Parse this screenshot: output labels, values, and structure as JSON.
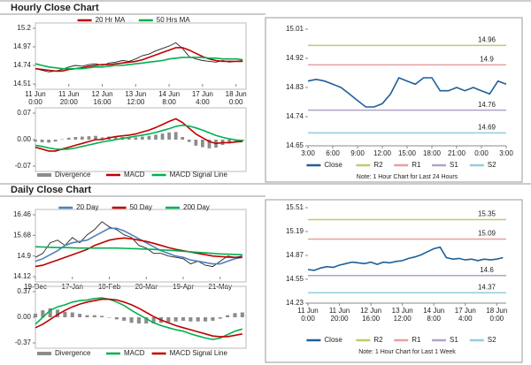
{
  "sections": [
    {
      "title": "Hourly Close Chart"
    },
    {
      "title": "Daily Close Chart"
    }
  ],
  "chart_data": [
    {
      "type": "line",
      "x": [
        0,
        4,
        8,
        12,
        16,
        20,
        24,
        28,
        32,
        36,
        40,
        44,
        48,
        52,
        56,
        60,
        64,
        68,
        72,
        76,
        80,
        84,
        88,
        92,
        96,
        100,
        104,
        108,
        112,
        116,
        120,
        124
      ],
      "xlim": [
        0,
        126
      ],
      "ylim": [
        14.51,
        15.2
      ],
      "yticks": [
        14.51,
        14.74,
        14.97,
        15.2
      ],
      "xticks": [
        {
          "value": 0,
          "label": "11 Jun\n0:00"
        },
        {
          "value": 20,
          "label": "11 Jun\n20:00"
        },
        {
          "value": 40,
          "label": "12 Jun\n16:00"
        },
        {
          "value": 60,
          "label": "13 Jun\n12:00"
        },
        {
          "value": 80,
          "label": "14 Jun\n8:00"
        },
        {
          "value": 100,
          "label": "17 Jun\n4:00"
        },
        {
          "value": 120,
          "label": "18 Jun\n0:00"
        }
      ],
      "series": [
        {
          "color": "#222222",
          "values": [
            14.7,
            14.68,
            14.66,
            14.67,
            14.69,
            14.72,
            14.74,
            14.73,
            14.75,
            14.76,
            14.74,
            14.77,
            14.78,
            14.8,
            14.79,
            14.82,
            14.86,
            14.88,
            14.92,
            14.95,
            14.98,
            15.02,
            14.95,
            14.85,
            14.82,
            14.8,
            14.79,
            14.78,
            14.8,
            14.78,
            14.79,
            14.8
          ]
        },
        {
          "name": "20 Hr MA",
          "color": "#c00000",
          "values": [
            14.7,
            14.69,
            14.68,
            14.67,
            14.67,
            14.69,
            14.7,
            14.71,
            14.73,
            14.74,
            14.75,
            14.75,
            14.76,
            14.77,
            14.78,
            14.79,
            14.81,
            14.84,
            14.87,
            14.9,
            14.93,
            14.96,
            14.96,
            14.93,
            14.89,
            14.85,
            14.82,
            14.8,
            14.79,
            14.79,
            14.79,
            14.79
          ]
        },
        {
          "name": "50 Hrs MA",
          "color": "#00b050",
          "values": [
            14.76,
            14.74,
            14.72,
            14.71,
            14.7,
            14.7,
            14.7,
            14.7,
            14.71,
            14.72,
            14.72,
            14.73,
            14.74,
            14.74,
            14.75,
            14.76,
            14.77,
            14.78,
            14.79,
            14.8,
            14.82,
            14.83,
            14.84,
            14.84,
            14.84,
            14.84,
            14.83,
            14.83,
            14.82,
            14.82,
            14.82,
            14.81
          ]
        }
      ]
    },
    {
      "type": "macd",
      "x": [
        0,
        4,
        8,
        12,
        16,
        20,
        24,
        28,
        32,
        36,
        40,
        44,
        48,
        52,
        56,
        60,
        64,
        68,
        72,
        76,
        80,
        84,
        88,
        92,
        96,
        100,
        104,
        108,
        112,
        116,
        120,
        124
      ],
      "xlim": [
        0,
        126
      ],
      "ylim": [
        -0.07,
        0.07
      ],
      "yticks": [
        -0.07,
        {
          "value": 0,
          "label": "0.00"
        },
        0.07
      ],
      "series": [
        {
          "name": "Divergence",
          "style": "bar",
          "color": "#8c8c8c",
          "values": [
            -0.005,
            -0.007,
            -0.008,
            -0.005,
            0.001,
            0.005,
            0.007,
            0.008,
            0.009,
            0.01,
            0.006,
            0.008,
            0.008,
            0.007,
            0.006,
            0.006,
            0.008,
            0.01,
            0.013,
            0.016,
            0.019,
            0.02,
            0.007,
            -0.006,
            -0.016,
            -0.02,
            -0.023,
            -0.021,
            -0.014,
            -0.01,
            -0.005,
            -0.003
          ]
        },
        {
          "name": "MACD",
          "color": "#c00000",
          "values": [
            -0.02,
            -0.025,
            -0.03,
            -0.03,
            -0.025,
            -0.02,
            -0.015,
            -0.01,
            -0.005,
            0,
            0,
            0.005,
            0.008,
            0.01,
            0.012,
            0.015,
            0.02,
            0.025,
            0.032,
            0.04,
            0.048,
            0.055,
            0.045,
            0.03,
            0.015,
            0.005,
            -0.005,
            -0.01,
            -0.008,
            -0.008,
            -0.006,
            -0.005
          ]
        },
        {
          "name": "MACD Signal Line",
          "color": "#00b050",
          "values": [
            -0.015,
            -0.018,
            -0.022,
            -0.025,
            -0.026,
            -0.025,
            -0.022,
            -0.018,
            -0.014,
            -0.01,
            -0.006,
            -0.003,
            0,
            0.003,
            0.006,
            0.009,
            0.012,
            0.015,
            0.019,
            0.024,
            0.029,
            0.035,
            0.038,
            0.036,
            0.031,
            0.025,
            0.018,
            0.011,
            0.006,
            0.002,
            -0.001,
            -0.002
          ]
        }
      ]
    },
    {
      "type": "line",
      "note": "Note: 1 Hour Chart for Last 24 Hours",
      "x": [
        0,
        1,
        2,
        3,
        4,
        5,
        6,
        7,
        8,
        9,
        10,
        11,
        12,
        13,
        14,
        15,
        16,
        17,
        18,
        19,
        20,
        21,
        22,
        23,
        24
      ],
      "xlim": [
        0,
        24
      ],
      "ylim": [
        14.65,
        15.01
      ],
      "yticks": [
        14.65,
        14.74,
        14.83,
        14.92,
        15.01
      ],
      "xticks": [
        {
          "value": 0,
          "label": "3:00"
        },
        {
          "value": 3,
          "label": "6:00"
        },
        {
          "value": 6,
          "label": "9:00"
        },
        {
          "value": 9,
          "label": "12:00"
        },
        {
          "value": 12,
          "label": "15:00"
        },
        {
          "value": 15,
          "label": "18:00"
        },
        {
          "value": 18,
          "label": "21:00"
        },
        {
          "value": 21,
          "label": "0:00"
        },
        {
          "value": 24,
          "label": "3:00"
        }
      ],
      "series": [
        {
          "name": "Close",
          "color": "#1f5f99",
          "values": [
            14.85,
            14.855,
            14.85,
            14.84,
            14.83,
            14.81,
            14.79,
            14.77,
            14.77,
            14.78,
            14.81,
            14.86,
            14.85,
            14.84,
            14.86,
            14.86,
            14.82,
            14.82,
            14.83,
            14.82,
            14.83,
            14.82,
            14.81,
            14.85,
            14.84
          ]
        }
      ],
      "levels": [
        {
          "name": "R2",
          "value": 14.96,
          "color": "#b5cf6e"
        },
        {
          "name": "R1",
          "value": 14.9,
          "color": "#e6a0a0"
        },
        {
          "name": "S1",
          "value": 14.76,
          "color": "#b3a2c7"
        },
        {
          "name": "S2",
          "value": 14.69,
          "color": "#92cddc"
        }
      ]
    },
    {
      "type": "line",
      "x": [
        0,
        4,
        8,
        12,
        16,
        20,
        24,
        28,
        32,
        36,
        40,
        44,
        48,
        52,
        56,
        60,
        64,
        68,
        72,
        76,
        80,
        84,
        88,
        92,
        96,
        100,
        104,
        108,
        112
      ],
      "xlim": [
        0,
        114
      ],
      "ylim": [
        14.12,
        16.46
      ],
      "yticks": [
        14.12,
        14.9,
        15.68,
        16.46
      ],
      "xticks": [
        {
          "value": 0,
          "label": "19-Dec"
        },
        {
          "value": 20,
          "label": "17-Jan"
        },
        {
          "value": 40,
          "label": "18-Feb"
        },
        {
          "value": 60,
          "label": "20-Mar"
        },
        {
          "value": 80,
          "label": "19-Apr"
        },
        {
          "value": 100,
          "label": "21-May"
        }
      ],
      "series": [
        {
          "color": "#222222",
          "values": [
            14.85,
            15.0,
            15.4,
            15.5,
            15.3,
            15.6,
            15.4,
            15.7,
            15.9,
            16.2,
            16.0,
            15.9,
            15.7,
            15.6,
            15.3,
            15.2,
            15.0,
            15.0,
            14.9,
            14.85,
            14.8,
            14.6,
            14.7,
            14.55,
            14.5,
            14.7,
            14.9,
            14.85,
            14.9
          ]
        },
        {
          "name": "20 Day",
          "color": "#4f81bd",
          "values": [
            14.7,
            14.8,
            14.95,
            15.1,
            15.3,
            15.4,
            15.45,
            15.5,
            15.65,
            15.8,
            15.95,
            15.95,
            15.85,
            15.7,
            15.55,
            15.4,
            15.25,
            15.1,
            15.0,
            14.9,
            14.85,
            14.75,
            14.7,
            14.65,
            14.6,
            14.6,
            14.7,
            14.8,
            14.85
          ]
        },
        {
          "name": "50 Day",
          "color": "#c00000",
          "values": [
            14.5,
            14.55,
            14.65,
            14.75,
            14.85,
            14.95,
            15.05,
            15.15,
            15.3,
            15.4,
            15.5,
            15.55,
            15.58,
            15.55,
            15.5,
            15.45,
            15.38,
            15.3,
            15.22,
            15.15,
            15.1,
            15.05,
            15.0,
            14.95,
            14.9,
            14.88,
            14.86,
            14.85,
            14.85
          ]
        },
        {
          "name": "200 Day",
          "color": "#00b050",
          "values": [
            15.25,
            15.24,
            15.23,
            15.22,
            15.22,
            15.21,
            15.2,
            15.2,
            15.2,
            15.2,
            15.2,
            15.2,
            15.19,
            15.18,
            15.17,
            15.16,
            15.15,
            15.13,
            15.12,
            15.1,
            15.08,
            15.06,
            15.04,
            15.02,
            15.0,
            14.98,
            14.97,
            14.96,
            14.95
          ]
        }
      ]
    },
    {
      "type": "macd",
      "x": [
        0,
        4,
        8,
        12,
        16,
        20,
        24,
        28,
        32,
        36,
        40,
        44,
        48,
        52,
        56,
        60,
        64,
        68,
        72,
        76,
        80,
        84,
        88,
        92,
        96,
        100,
        104,
        108,
        112
      ],
      "xlim": [
        0,
        114
      ],
      "ylim": [
        -0.37,
        0.37
      ],
      "yticks": [
        -0.37,
        {
          "value": 0,
          "label": "0.00"
        },
        0.37
      ],
      "series": [
        {
          "name": "Divergence",
          "style": "bar",
          "color": "#8c8c8c",
          "values": [
            0.05,
            0.1,
            0.13,
            0.11,
            0.08,
            0.07,
            0.05,
            0.03,
            0.03,
            0.02,
            0,
            -0.03,
            -0.05,
            -0.08,
            -0.09,
            -0.09,
            -0.09,
            -0.08,
            -0.07,
            -0.06,
            -0.05,
            -0.06,
            -0.06,
            -0.06,
            -0.05,
            -0.02,
            0.03,
            0.06,
            0.07
          ]
        },
        {
          "name": "MACD",
          "color": "#00b050",
          "values": [
            -0.1,
            0.0,
            0.1,
            0.15,
            0.18,
            0.22,
            0.24,
            0.25,
            0.27,
            0.28,
            0.26,
            0.22,
            0.17,
            0.1,
            0.04,
            -0.02,
            -0.08,
            -0.12,
            -0.15,
            -0.18,
            -0.2,
            -0.24,
            -0.27,
            -0.3,
            -0.32,
            -0.3,
            -0.25,
            -0.2,
            -0.17
          ]
        },
        {
          "name": "MACD Signal Line",
          "color": "#c00000",
          "values": [
            -0.15,
            -0.1,
            -0.03,
            0.04,
            0.1,
            0.15,
            0.19,
            0.22,
            0.24,
            0.26,
            0.26,
            0.25,
            0.22,
            0.18,
            0.13,
            0.07,
            0.01,
            -0.04,
            -0.08,
            -0.12,
            -0.15,
            -0.18,
            -0.21,
            -0.24,
            -0.27,
            -0.28,
            -0.28,
            -0.26,
            -0.24
          ]
        }
      ]
    },
    {
      "type": "line",
      "note": "Note: 1 Hour Chart for Last 1 Week",
      "x": [
        0,
        4,
        8,
        12,
        16,
        20,
        24,
        28,
        32,
        36,
        40,
        44,
        48,
        52,
        56,
        60,
        64,
        68,
        72,
        76,
        80,
        84,
        88,
        92,
        96,
        100,
        104,
        108,
        112,
        116,
        120,
        124
      ],
      "xlim": [
        0,
        126
      ],
      "ylim": [
        14.23,
        15.51
      ],
      "yticks": [
        14.23,
        14.55,
        14.87,
        15.19,
        15.51
      ],
      "xticks": [
        {
          "value": 0,
          "label": "11 Jun\n0:00"
        },
        {
          "value": 20,
          "label": "11 Jun\n20:00"
        },
        {
          "value": 40,
          "label": "12 Jun\n16:00"
        },
        {
          "value": 60,
          "label": "13 Jun\n12:00"
        },
        {
          "value": 80,
          "label": "14 Jun\n8:00"
        },
        {
          "value": 100,
          "label": "17 Jun\n4:00"
        },
        {
          "value": 120,
          "label": "18 Jun\n0:00"
        }
      ],
      "series": [
        {
          "name": "Close",
          "color": "#1f5f99",
          "values": [
            14.68,
            14.67,
            14.7,
            14.72,
            14.71,
            14.74,
            14.76,
            14.78,
            14.77,
            14.76,
            14.78,
            14.75,
            14.78,
            14.77,
            14.79,
            14.8,
            14.83,
            14.85,
            14.88,
            14.92,
            14.96,
            14.98,
            14.84,
            14.82,
            14.83,
            14.81,
            14.82,
            14.8,
            14.82,
            14.81,
            14.82,
            14.84
          ]
        }
      ],
      "levels": [
        {
          "name": "R2",
          "value": 15.35,
          "color": "#b5cf6e"
        },
        {
          "name": "R1",
          "value": 15.09,
          "color": "#e6a0a0"
        },
        {
          "name": "S1",
          "value": 14.6,
          "color": "#b3a2c7"
        },
        {
          "name": "S2",
          "value": 14.37,
          "color": "#92cddc"
        }
      ]
    }
  ]
}
